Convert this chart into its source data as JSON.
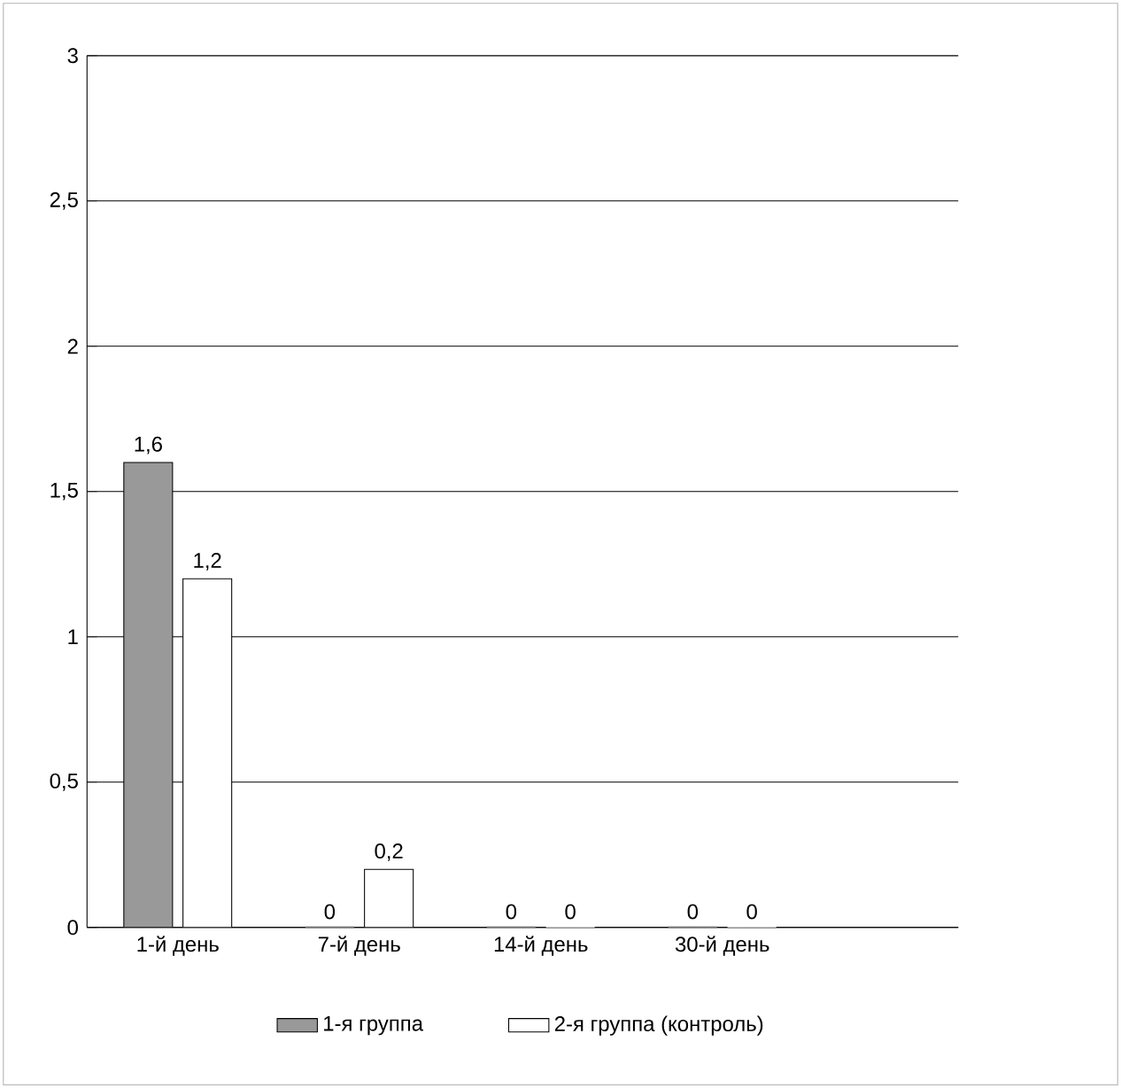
{
  "chart_data": {
    "type": "bar",
    "categories": [
      "1-й день",
      "7-й день",
      "14-й день",
      "30-й день"
    ],
    "series": [
      {
        "name": "1-я группа",
        "color": "#999999",
        "values": [
          1.6,
          0,
          0,
          0
        ],
        "value_labels": [
          "1,6",
          "0",
          "0",
          "0"
        ]
      },
      {
        "name": "2-я группа (контроль)",
        "color": "#ffffff",
        "values": [
          1.2,
          0.2,
          0,
          0
        ],
        "value_labels": [
          "1,2",
          "0,2",
          "0",
          "0"
        ]
      }
    ],
    "ylim": [
      0,
      3
    ],
    "yticks": [
      0,
      {
        "value": 0.5,
        "label": "0,5"
      },
      1,
      {
        "value": 1.5,
        "label": "1,5"
      },
      2,
      {
        "value": 2.5,
        "label": "2,5"
      },
      3
    ],
    "grid": "y",
    "legend": "bottom"
  }
}
